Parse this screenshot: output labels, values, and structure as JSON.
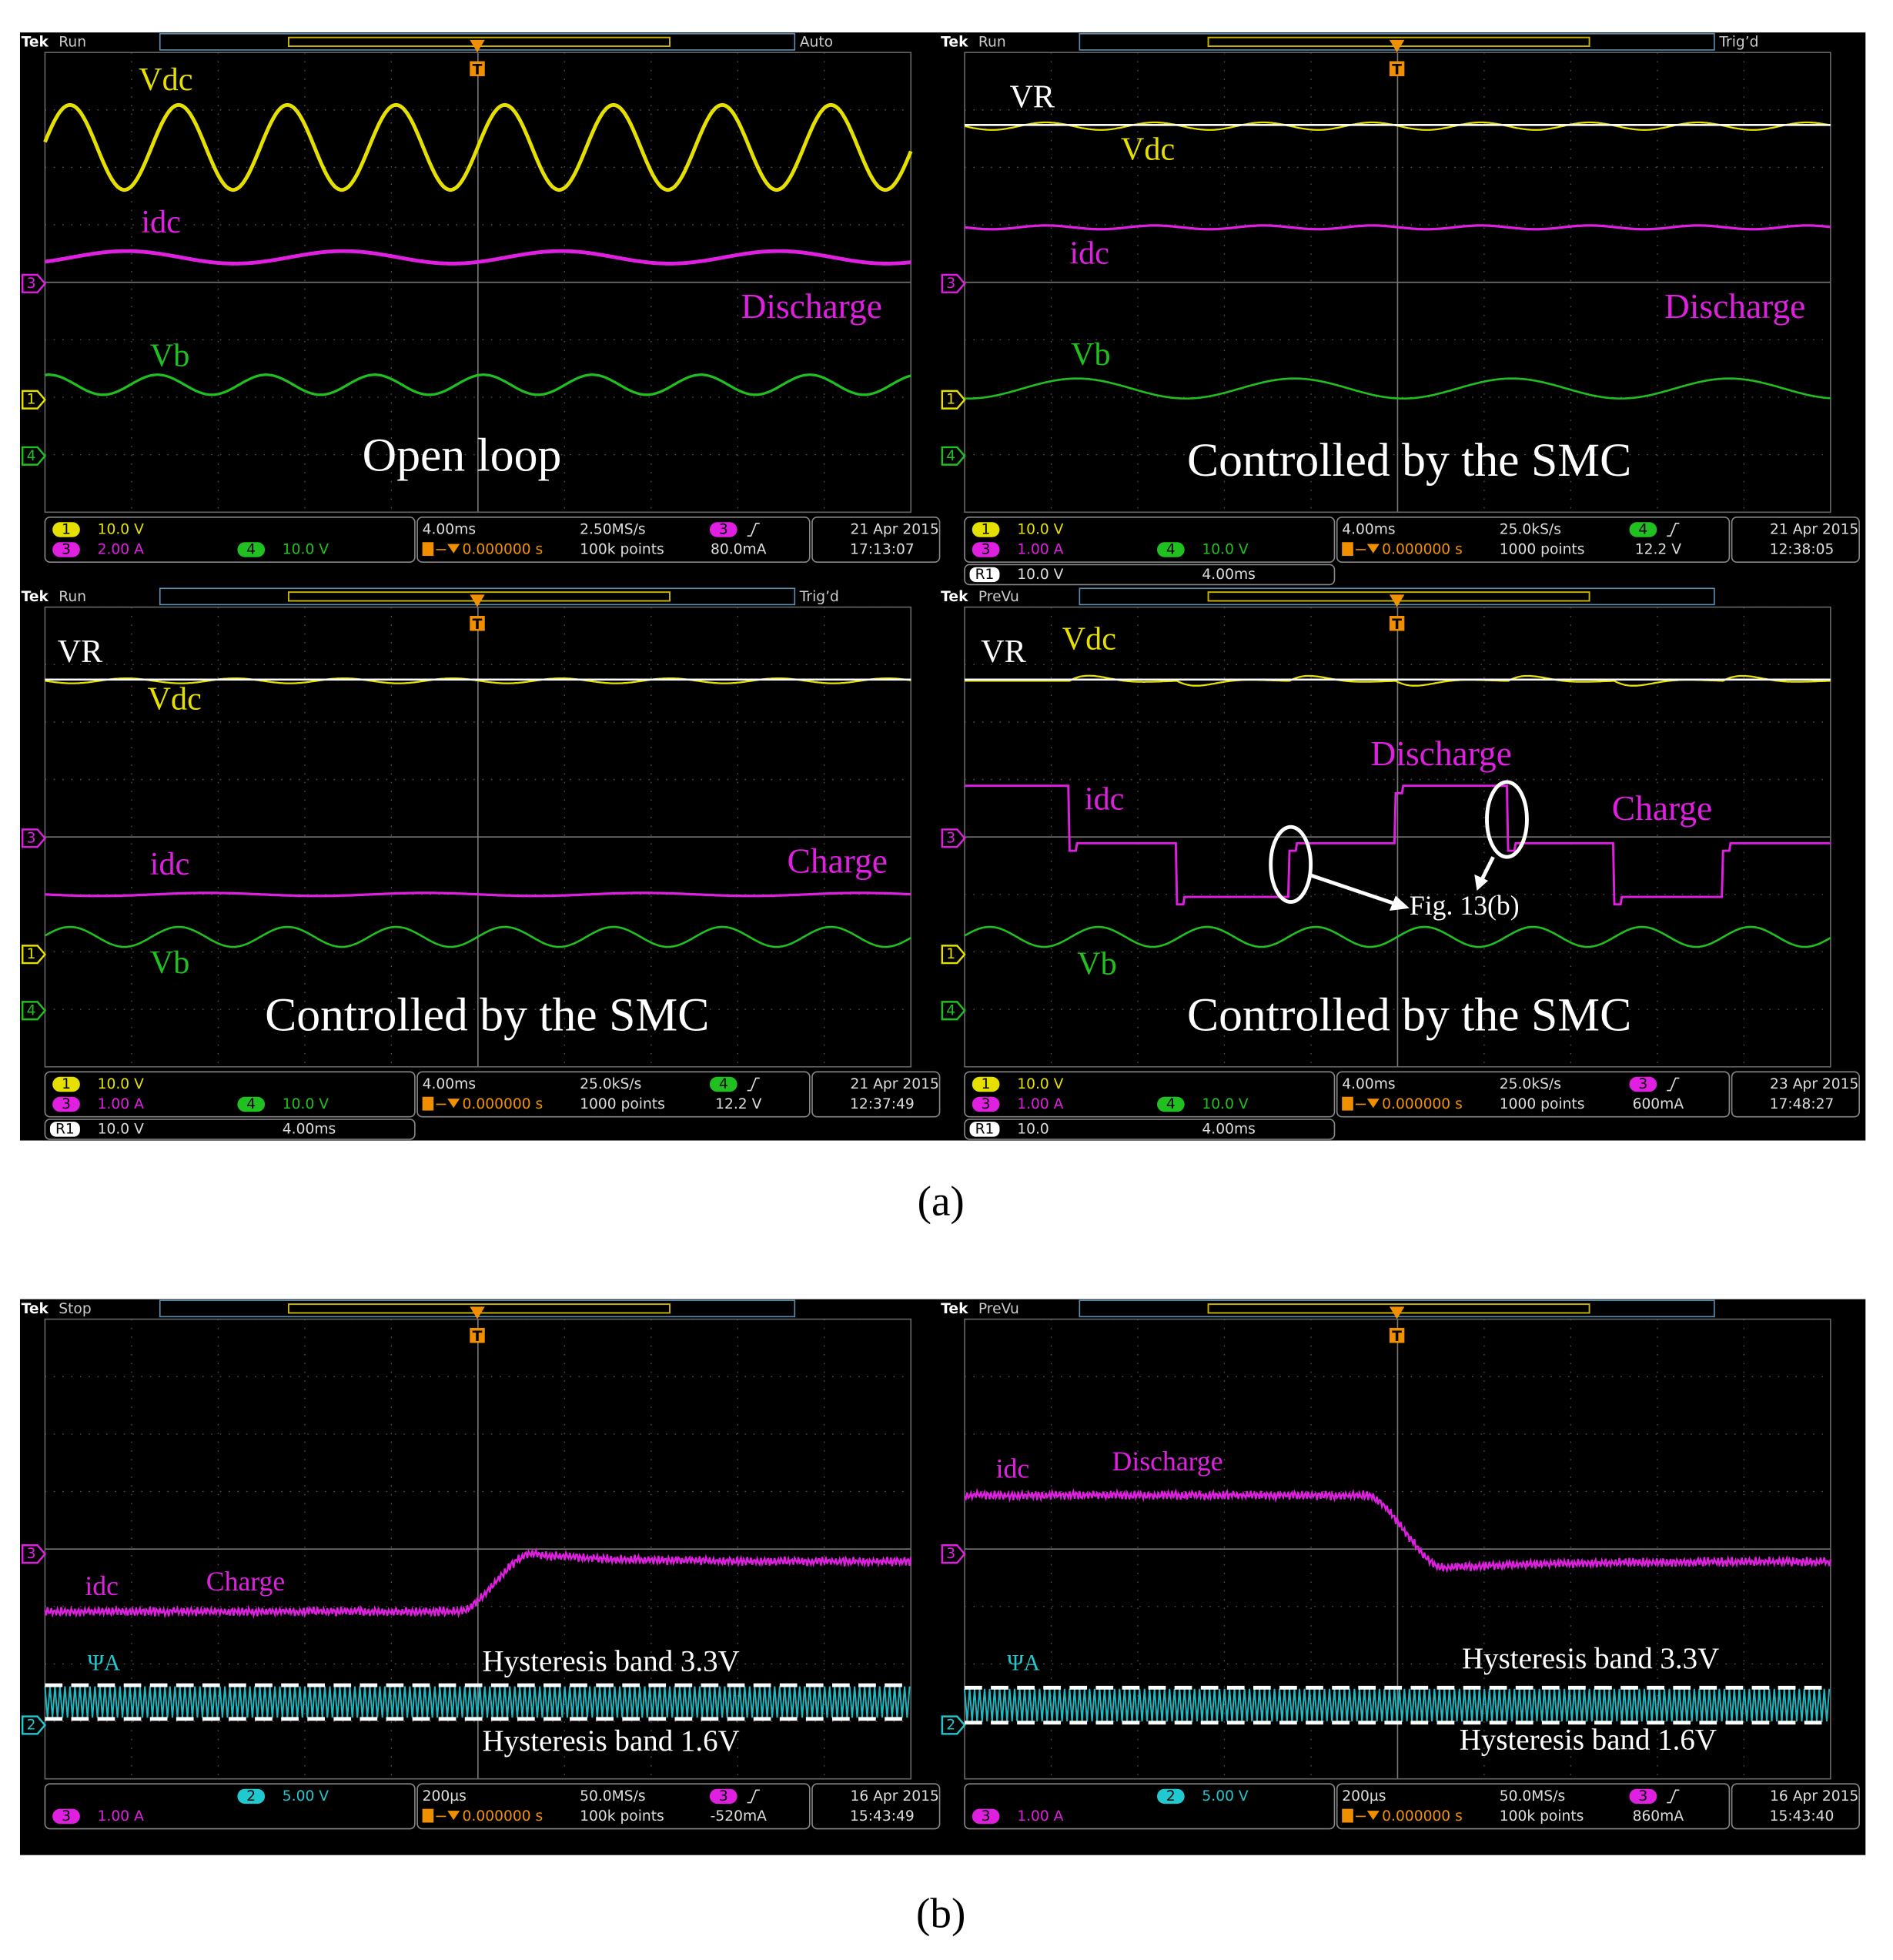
{
  "figure_a": {
    "caption": "(a)",
    "scopes": [
      {
        "header": {
          "brand": "Tek",
          "state": "Run",
          "trigger": "Auto",
          "mark": "T"
        },
        "markers": [
          {
            "n": "3",
            "color": "#e020e0"
          },
          {
            "n": "1",
            "color": "#e6e000"
          },
          {
            "n": "4",
            "color": "#20c020"
          }
        ],
        "labels": [
          {
            "text": "Vdc",
            "color": "#e6e000"
          },
          {
            "text": "idc",
            "color": "#e020e0"
          },
          {
            "text": "Discharge",
            "color": "#e020e0"
          },
          {
            "text": "Vb",
            "color": "#20c020"
          },
          {
            "text": "Open loop",
            "color": "#ffffff"
          }
        ],
        "status": {
          "channels": [
            {
              "n": "1",
              "v": "10.0 V",
              "color": "#e6e000"
            },
            {
              "n": "3",
              "v": "2.00 A",
              "color": "#e020e0"
            },
            {
              "n": "4",
              "v": "10.0 V",
              "color": "#20c020"
            }
          ],
          "time": "4.00ms",
          "delay": "0.000000 s",
          "rate": "2.50MS/s",
          "points": "100k points",
          "trig": {
            "n": "3",
            "v": "80.0mA",
            "color": "#e020e0"
          },
          "date": "21 Apr 2015",
          "clock": "17:13:07"
        }
      },
      {
        "header": {
          "brand": "Tek",
          "state": "Run",
          "trigger": "Trig’d",
          "mark": "T"
        },
        "markers": [
          {
            "n": "3",
            "color": "#e020e0"
          },
          {
            "n": "1",
            "color": "#e6e000"
          },
          {
            "n": "4",
            "color": "#20c020"
          }
        ],
        "labels": [
          {
            "text": "VR",
            "color": "#ffffff"
          },
          {
            "text": "Vdc",
            "color": "#e6e000"
          },
          {
            "text": "idc",
            "color": "#e020e0"
          },
          {
            "text": "Discharge",
            "color": "#e020e0"
          },
          {
            "text": "Vb",
            "color": "#20c020"
          },
          {
            "text": "Controlled by the SMC",
            "color": "#ffffff"
          }
        ],
        "status": {
          "channels": [
            {
              "n": "1",
              "v": "10.0 V",
              "color": "#e6e000"
            },
            {
              "n": "3",
              "v": "1.00 A",
              "color": "#e020e0"
            },
            {
              "n": "4",
              "v": "10.0 V",
              "color": "#20c020"
            }
          ],
          "time": "4.00ms",
          "delay": "0.000000 s",
          "rate": "25.0kS/s",
          "points": "1000 points",
          "trig": {
            "n": "4",
            "v": "12.2 V",
            "color": "#20c020"
          },
          "date": "21 Apr 2015",
          "clock": "12:38:05",
          "ref": {
            "n": "R1",
            "v": "10.0 V",
            "t": "4.00ms"
          }
        }
      },
      {
        "header": {
          "brand": "Tek",
          "state": "Run",
          "trigger": "Trig’d",
          "mark": "T"
        },
        "markers": [
          {
            "n": "3",
            "color": "#e020e0"
          },
          {
            "n": "1",
            "color": "#e6e000"
          },
          {
            "n": "4",
            "color": "#20c020"
          }
        ],
        "labels": [
          {
            "text": "VR",
            "color": "#ffffff"
          },
          {
            "text": "Vdc",
            "color": "#e6e000"
          },
          {
            "text": "idc",
            "color": "#e020e0"
          },
          {
            "text": "Charge",
            "color": "#e020e0"
          },
          {
            "text": "Vb",
            "color": "#20c020"
          },
          {
            "text": "Controlled by the SMC",
            "color": "#ffffff"
          }
        ],
        "status": {
          "channels": [
            {
              "n": "1",
              "v": "10.0 V",
              "color": "#e6e000"
            },
            {
              "n": "3",
              "v": "1.00 A",
              "color": "#e020e0"
            },
            {
              "n": "4",
              "v": "10.0 V",
              "color": "#20c020"
            }
          ],
          "time": "4.00ms",
          "delay": "0.000000 s",
          "rate": "25.0kS/s",
          "points": "1000 points",
          "trig": {
            "n": "4",
            "v": "12.2 V",
            "color": "#20c020"
          },
          "date": "21 Apr 2015",
          "clock": "12:37:49",
          "ref": {
            "n": "R1",
            "v": "10.0 V",
            "t": "4.00ms"
          }
        }
      },
      {
        "header": {
          "brand": "Tek",
          "state": "PreVu",
          "mark": "T"
        },
        "markers": [
          {
            "n": "3",
            "color": "#e020e0"
          },
          {
            "n": "1",
            "color": "#e6e000"
          },
          {
            "n": "4",
            "color": "#20c020"
          }
        ],
        "labels": [
          {
            "text": "VR",
            "color": "#ffffff"
          },
          {
            "text": "Vdc",
            "color": "#e6e000"
          },
          {
            "text": "Discharge",
            "color": "#e020e0"
          },
          {
            "text": "idc",
            "color": "#e020e0"
          },
          {
            "text": "Charge",
            "color": "#e020e0"
          },
          {
            "text": "Fig. 13(b)",
            "color": "#ffffff"
          },
          {
            "text": "Vb",
            "color": "#20c020"
          },
          {
            "text": "Controlled by the SMC",
            "color": "#ffffff"
          }
        ],
        "status": {
          "channels": [
            {
              "n": "1",
              "v": "10.0 V",
              "color": "#e6e000"
            },
            {
              "n": "3",
              "v": "1.00 A",
              "color": "#e020e0"
            },
            {
              "n": "4",
              "v": "10.0 V",
              "color": "#20c020"
            }
          ],
          "time": "4.00ms",
          "delay": "0.000000 s",
          "rate": "25.0kS/s",
          "points": "1000 points",
          "trig": {
            "n": "3",
            "v": "600mA",
            "color": "#e020e0"
          },
          "date": "23 Apr 2015",
          "clock": "17:48:27",
          "ref": {
            "n": "R1",
            "v": "10.0",
            "t": "4.00ms"
          }
        }
      }
    ]
  },
  "figure_b": {
    "caption": "(b)",
    "scopes": [
      {
        "header": {
          "brand": "Tek",
          "state": "Stop",
          "mark": "T"
        },
        "markers": [
          {
            "n": "3",
            "color": "#e020e0"
          },
          {
            "n": "2",
            "color": "#20c8d0"
          }
        ],
        "labels": [
          {
            "text": "idc",
            "color": "#e020e0"
          },
          {
            "text": "Charge",
            "color": "#e020e0"
          },
          {
            "text": "ΨA",
            "color": "#20c8d0"
          },
          {
            "text": "Hysteresis band 3.3V",
            "color": "#ffffff"
          },
          {
            "text": "Hysteresis band 1.6V",
            "color": "#ffffff"
          }
        ],
        "status": {
          "channels": [
            {
              "n": "2",
              "v": "5.00 V",
              "color": "#20c8d0"
            },
            {
              "n": "3",
              "v": "1.00 A",
              "color": "#e020e0"
            }
          ],
          "time": "200µs",
          "delay": "0.000000 s",
          "rate": "50.0MS/s",
          "points": "100k points",
          "trig": {
            "n": "3",
            "v": "-520mA",
            "color": "#e020e0"
          },
          "date": "16 Apr 2015",
          "clock": "15:43:49"
        }
      },
      {
        "header": {
          "brand": "Tek",
          "state": "PreVu",
          "mark": "T"
        },
        "markers": [
          {
            "n": "3",
            "color": "#e020e0"
          },
          {
            "n": "2",
            "color": "#20c8d0"
          }
        ],
        "labels": [
          {
            "text": "idc",
            "color": "#e020e0"
          },
          {
            "text": "Discharge",
            "color": "#e020e0"
          },
          {
            "text": "ΨA",
            "color": "#20c8d0"
          },
          {
            "text": "Hysteresis band 3.3V",
            "color": "#ffffff"
          },
          {
            "text": "Hysteresis band 1.6V",
            "color": "#ffffff"
          }
        ],
        "status": {
          "channels": [
            {
              "n": "2",
              "v": "5.00 V",
              "color": "#20c8d0"
            },
            {
              "n": "3",
              "v": "1.00 A",
              "color": "#e020e0"
            }
          ],
          "time": "200µs",
          "delay": "0.000000 s",
          "rate": "50.0MS/s",
          "points": "100k points",
          "trig": {
            "n": "3",
            "v": "860mA",
            "color": "#e020e0"
          },
          "date": "16 Apr 2015",
          "clock": "15:43:40"
        }
      }
    ]
  }
}
